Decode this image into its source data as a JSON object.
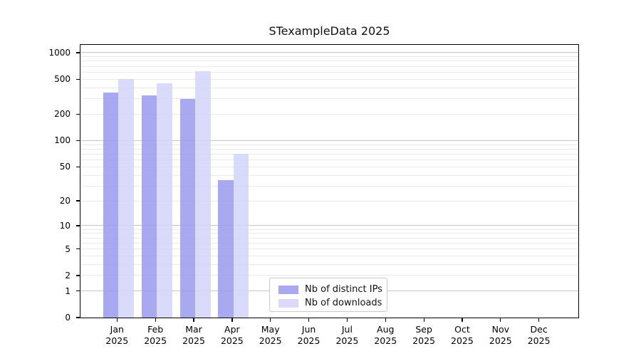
{
  "chart_data": {
    "type": "bar",
    "title": "STexampleData 2025",
    "yscale": "log1p",
    "ylim": [
      0,
      1200
    ],
    "yticks": [
      0,
      1,
      2,
      5,
      10,
      20,
      50,
      100,
      200,
      500,
      1000
    ],
    "grid": true,
    "x_categories": [
      "Jan",
      "Feb",
      "Mar",
      "Apr",
      "May",
      "Jun",
      "Jul",
      "Aug",
      "Sep",
      "Oct",
      "Nov",
      "Dec"
    ],
    "x_year": "2025",
    "series": [
      {
        "name": "Nb of distinct IPs",
        "color": "#a9a9f2",
        "fill": "rgba(154,154,240,0.85)",
        "values": [
          350,
          330,
          300,
          35,
          0,
          0,
          0,
          0,
          0,
          0,
          0,
          0
        ]
      },
      {
        "name": "Nb of downloads",
        "color": "#dadaf8",
        "fill": "rgba(212,212,250,0.85)",
        "values": [
          500,
          450,
          620,
          70,
          0,
          0,
          0,
          0,
          0,
          0,
          0,
          0
        ]
      }
    ],
    "legend_position": "lower center",
    "colors": {
      "grid_major": "#c6c6c6",
      "grid_minor": "#eaeaea",
      "axis": "#000000",
      "background": "#ffffff"
    }
  }
}
